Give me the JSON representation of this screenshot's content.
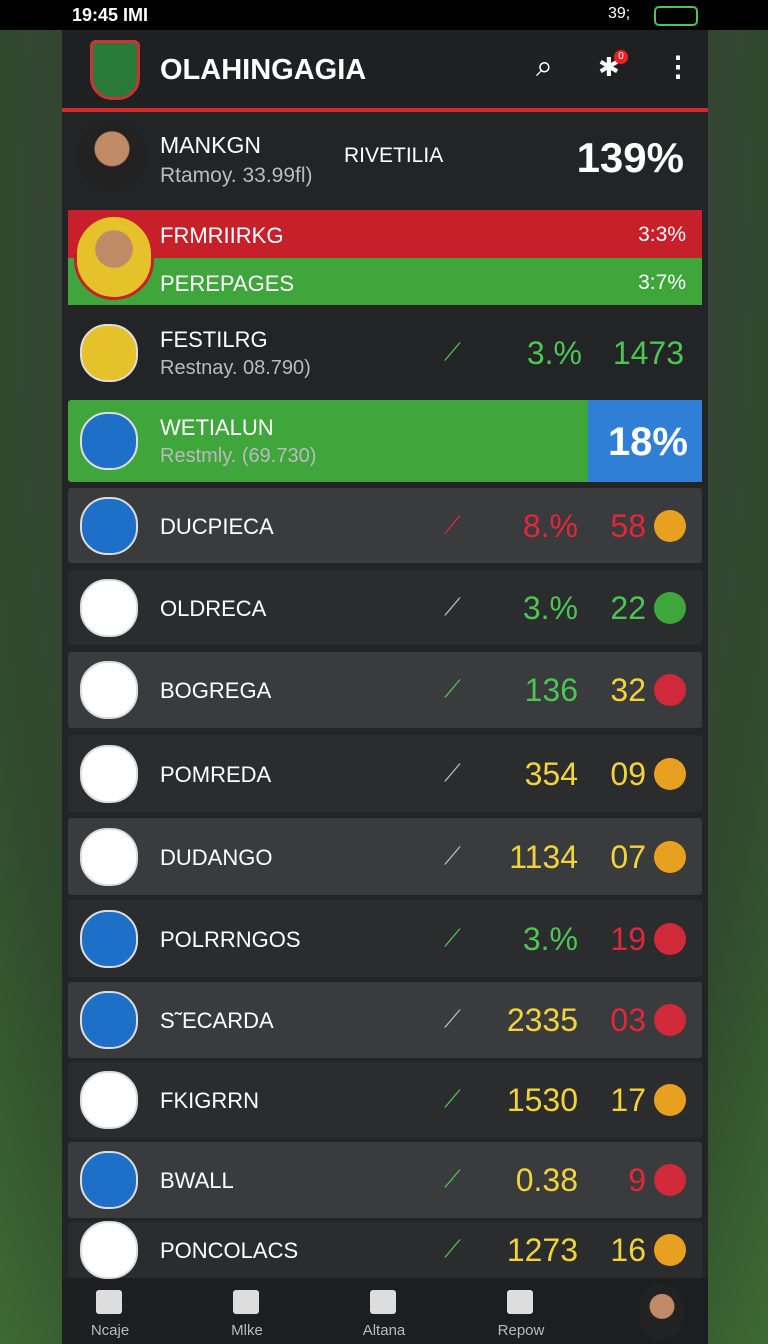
{
  "status_bar": {
    "time": "19:45 IMI",
    "battery": "39;"
  },
  "header": {
    "title": "OLAHINGAGIA",
    "badge": "0"
  },
  "top_player": {
    "name": "MANKGN",
    "subtitle": "Rtamoy. 33.99fl)",
    "label": "RIVETILIA",
    "value": "139%"
  },
  "highlights": [
    {
      "name": "FRMRIIRKG",
      "value": "3:3%"
    },
    {
      "name": "PEREPAGES",
      "value": "3:7%"
    }
  ],
  "rows": [
    {
      "name": "FESTILRG",
      "subtitle": "Restnay. 08.790)",
      "change": "3.%",
      "value": "1473"
    },
    {
      "name": "WETIALUN",
      "subtitle": "Restmly. (69.730)",
      "value": "18%"
    },
    {
      "name": "DUCPIECA",
      "change": "8.%",
      "value": "58"
    },
    {
      "name": "OLDRECA",
      "change": "3.%",
      "value": "22"
    },
    {
      "name": "BOGREGA",
      "change": "136",
      "value": "32"
    },
    {
      "name": "POMREDA",
      "change": "354",
      "value": "09"
    },
    {
      "name": "DUDANGO",
      "change": "1134",
      "value": "07"
    },
    {
      "name": "POLRRNGOS",
      "change": "3.%",
      "value": "19"
    },
    {
      "name": "S˜ECARDA",
      "change": "2335",
      "value": "03"
    },
    {
      "name": "FKIGRRN",
      "change": "1530",
      "value": "17"
    },
    {
      "name": "BWALL",
      "change": "0.38",
      "value": "9"
    },
    {
      "name": "PONCOLACS",
      "change": "1273",
      "value": "16"
    }
  ],
  "nav": [
    "Ncaje",
    "Mlke",
    "Altana",
    "Repow"
  ]
}
